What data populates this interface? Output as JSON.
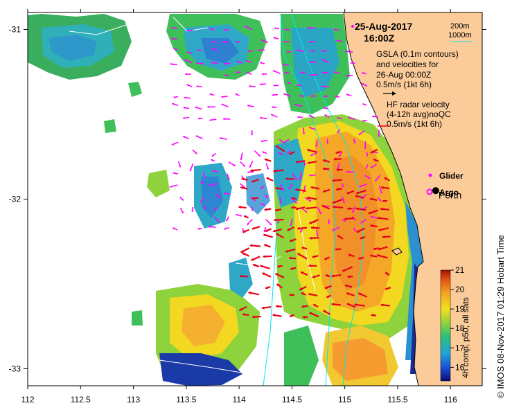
{
  "map": {
    "date": "25-Aug-2017",
    "time": "16:00Z",
    "city": "Perth",
    "x_ticks": [
      "112",
      "112.5",
      "113",
      "113.5",
      "114",
      "114.5",
      "115",
      "115.5",
      "116"
    ],
    "y_ticks": [
      "-31",
      "-32",
      "-33"
    ],
    "x_range": [
      112.0,
      116.3
    ],
    "y_range": [
      -30.9,
      -33.1
    ],
    "y_tick_values": [
      -31,
      -32,
      -33
    ],
    "city_lonlat": [
      115.86,
      -31.95
    ]
  },
  "legend": {
    "contour_200m": "200m",
    "contour_1000m": "1000m",
    "gsla_line1": "GSLA (0.1m contours)",
    "gsla_line2": "and velocities for",
    "gsla_line3": "26-Aug 00:00Z",
    "gsla_scale": "0.5m/s (1kt 6h)",
    "hf_line1": "HF radar velocity",
    "hf_line2": "(4-12h avg)noQC",
    "hf_scale": "0.5m/s (1kt 6h)",
    "glider": "Glider",
    "argo": "Argo"
  },
  "colorbar": {
    "ticks": [
      "21",
      "20",
      "19",
      "18",
      "17",
      "16"
    ],
    "title": "4h comp, p50, all sats"
  },
  "credit": "© IMOS 08-Nov-2017 01:29 Hobart Time",
  "colors": {
    "land": "#FBCB9A",
    "hf_arrow": "#E8001C",
    "gsla_arrow": "#FF00FF",
    "contour": "#00E5F0"
  }
}
